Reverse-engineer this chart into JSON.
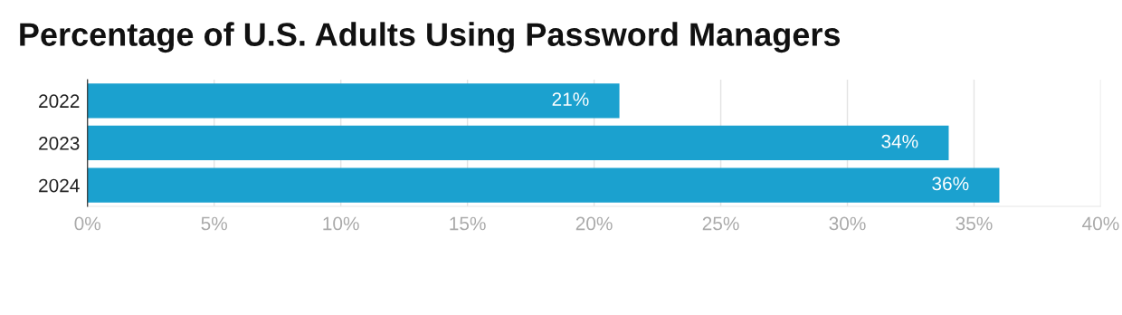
{
  "chart_data": {
    "type": "bar",
    "orientation": "horizontal",
    "title": "Percentage of U.S. Adults Using Password Managers",
    "categories": [
      "2022",
      "2023",
      "2024"
    ],
    "values": [
      21,
      34,
      36
    ],
    "color": "#1ba1cf",
    "value_labels": [
      "21%",
      "34%",
      "36%"
    ],
    "xlim": [
      0,
      40
    ],
    "xticks": [
      {
        "value": 0,
        "label": "0%"
      },
      {
        "value": 5,
        "label": "5%"
      },
      {
        "value": 10,
        "label": "10%"
      },
      {
        "value": 15,
        "label": "15%"
      },
      {
        "value": 20,
        "label": "20%"
      },
      {
        "value": 25,
        "label": "25%"
      },
      {
        "value": 30,
        "label": "30%"
      },
      {
        "value": 35,
        "label": "35%"
      },
      {
        "value": 40,
        "label": "40%"
      }
    ],
    "grid": "x"
  }
}
